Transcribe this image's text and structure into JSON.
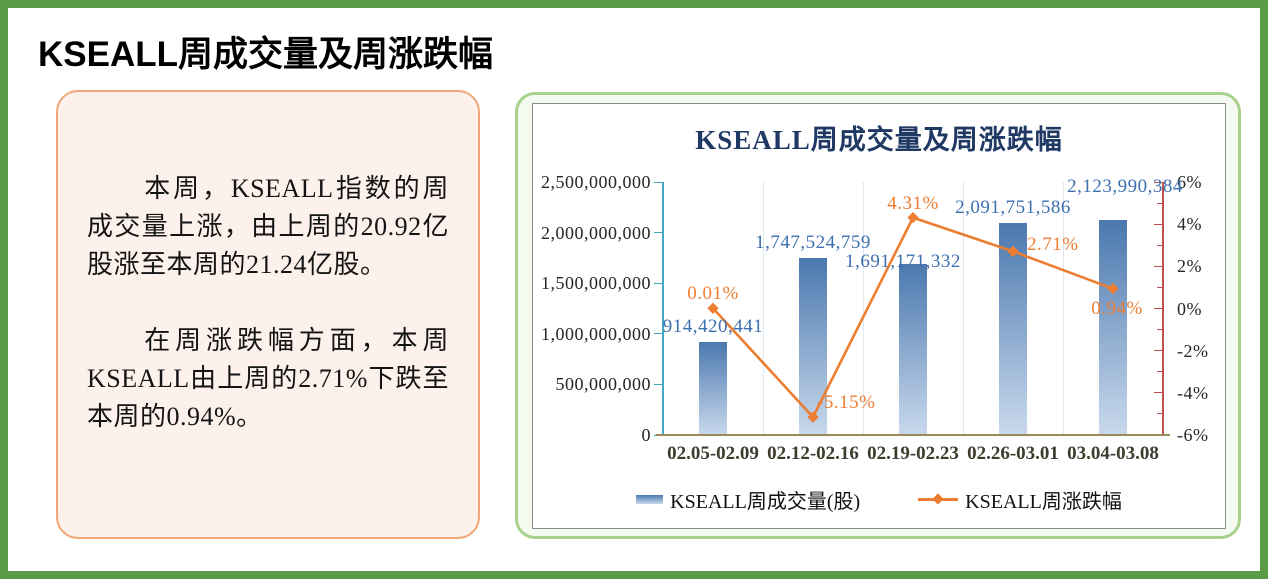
{
  "page": {
    "title": "KSEALL周成交量及周涨跌幅"
  },
  "summary_box": {
    "paragraphs": [
      "本周，KSEALL指数的周成交量上涨，由上周的20.92亿股涨至本周的21.24亿股。",
      "在周涨跌幅方面，本周KSEALL由上周的2.71%下跌至本周的0.94%。"
    ]
  },
  "chart_data": {
    "type": "combo-bar-line",
    "title": "KSEALL周成交量及周涨跌幅",
    "categories": [
      "02.05-02.09",
      "02.12-02.16",
      "02.19-02.23",
      "02.26-03.01",
      "03.04-03.08"
    ],
    "series": [
      {
        "name": "KSEALL周成交量(股)",
        "type": "bar",
        "axis": "left",
        "values": [
          914420441,
          1747524759,
          1691171332,
          2091751586,
          2123990384
        ],
        "data_labels": [
          "914,420,441",
          "1,747,524,759",
          "1,691,171,332",
          "2,091,751,586",
          "2,123,990,384"
        ]
      },
      {
        "name": "KSEALL周涨跌幅",
        "type": "line",
        "axis": "right",
        "values": [
          0.01,
          -5.15,
          4.31,
          2.71,
          0.94
        ],
        "data_labels": [
          "0.01%",
          "-5.15%",
          "4.31%",
          "2.71%",
          "0.94%"
        ],
        "label_positions": [
          "above",
          "right-up",
          "above",
          "right",
          "below"
        ]
      }
    ],
    "left_axis": {
      "min": 0,
      "max": 2500000000,
      "step": 500000000,
      "tick_labels": [
        "0",
        "500,000,000",
        "1,000,000,000",
        "1,500,000,000",
        "2,000,000,000",
        "2,500,000,000"
      ]
    },
    "right_axis": {
      "min": -6,
      "max": 6,
      "step": 2,
      "minor_step": 1,
      "tick_labels": [
        "6%",
        "4%",
        "2%",
        "0%",
        "-2%",
        "-4%",
        "-6%"
      ]
    },
    "legend": [
      {
        "label": "KSEALL周成交量(股)",
        "marker": "bar-swatch"
      },
      {
        "label": "KSEALL周涨跌幅",
        "marker": "line-diamond"
      }
    ],
    "grid": "vertical",
    "legend_position": "bottom",
    "colors": {
      "bar_gradient_top": "#4B78AE",
      "bar_gradient_bottom": "#C9D9ED",
      "line": "#ED7D31",
      "bar_label": "#3E6FB0",
      "pct_label": "#ED7D31",
      "title": "#1F3864",
      "left_axis_line": "#45A6C6",
      "right_axis_line": "#C0504D",
      "x_axis_line": "#9A8A57",
      "gridline": "#DCE8F4",
      "x_label": "#3E3C2E",
      "y_label": "#262626",
      "page_border": "#5B9B47",
      "card_border": "#A9D18E",
      "summary_border": "#F1A678",
      "summary_bg": "#FDF2EB"
    }
  }
}
